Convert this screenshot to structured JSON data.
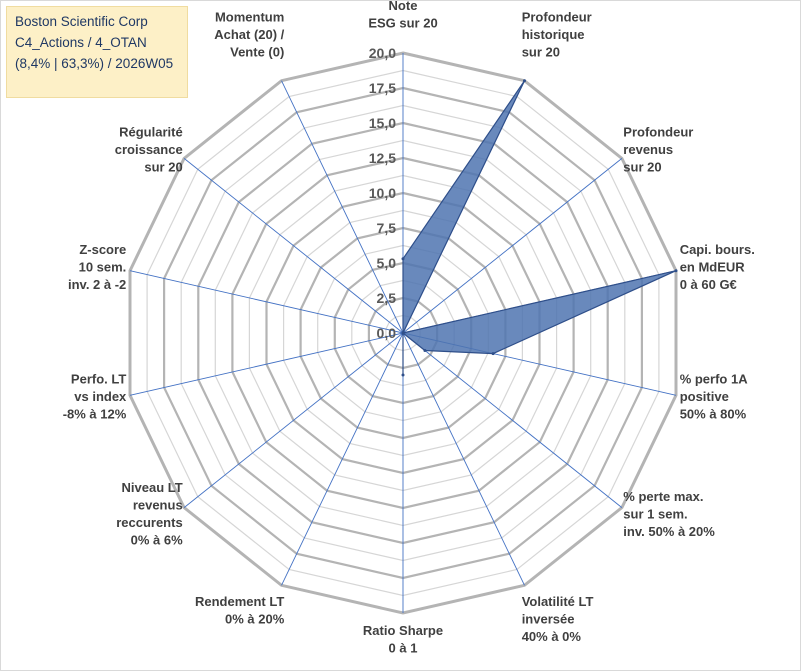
{
  "title_lines": [
    "Boston Scientific Corp",
    "C4_Actions / 4_OTAN",
    "(8,4% | 63,3%) / 2026W05"
  ],
  "colors": {
    "grid": "#bfbfbf",
    "spoke": "#4472c4",
    "fill": "#4f74b0",
    "stroke": "#2f4f8a",
    "title_bg": "#fdf0c7",
    "title_text": "#1f3864"
  },
  "chart_data": {
    "type": "radar",
    "r_range": [
      0,
      20
    ],
    "tick_step": 2.5,
    "tick_labels": [
      "0,0",
      "2,5",
      "5,0",
      "7,5",
      "10,0",
      "12,5",
      "15,0",
      "17,5",
      "20,0"
    ],
    "grid": true,
    "axes": [
      {
        "label": [
          "Note",
          "ESG sur 20"
        ],
        "value": 5.3
      },
      {
        "label": [
          "Profondeur",
          "historique",
          "sur 20"
        ],
        "value": 20.0
      },
      {
        "label": [
          "Profondeur",
          "revenus",
          "sur 20"
        ],
        "value": 0.0
      },
      {
        "label": [
          "Capi. bours.",
          "en MdEUR",
          "0 à 60 G€"
        ],
        "value": 20.0
      },
      {
        "label": [
          "% perfo 1A",
          "positive",
          "50% à 80%"
        ],
        "value": 6.6
      },
      {
        "label": [
          "% perte max.",
          "sur 1 sem.",
          "inv. 50% à 20%"
        ],
        "value": 2.0
      },
      {
        "label": [
          "Volatilité LT",
          "inversée",
          "40% à 0%"
        ],
        "value": 0.0
      },
      {
        "label": [
          "Ratio Sharpe",
          "0 à 1"
        ],
        "value": 3.0
      },
      {
        "label": [
          "Rendement LT",
          "0% à 20%"
        ],
        "value": 0.0
      },
      {
        "label": [
          "Niveau LT",
          "revenus",
          "reccurents",
          "0% à 6%"
        ],
        "value": 0.0
      },
      {
        "label": [
          "Perfo. LT",
          "vs index",
          "-8% à 12%"
        ],
        "value": 0.0
      },
      {
        "label": [
          "Z-score",
          "10 sem.",
          "inv. 2 à -2"
        ],
        "value": 0.0
      },
      {
        "label": [
          "Régularité",
          "croissance",
          "sur 20"
        ],
        "value": 0.0
      },
      {
        "label": [
          "Momentum",
          "Achat (20) /",
          "Vente (0)"
        ],
        "value": 0.0
      }
    ],
    "values_ordered_note": "",
    "series": [
      {
        "values": [
          5.3,
          20.0,
          0.0,
          20.0,
          6.6,
          2.0,
          0.0,
          3.0,
          0.0,
          0.0,
          0.0,
          0.0,
          0.0,
          0.0
        ]
      }
    ]
  }
}
